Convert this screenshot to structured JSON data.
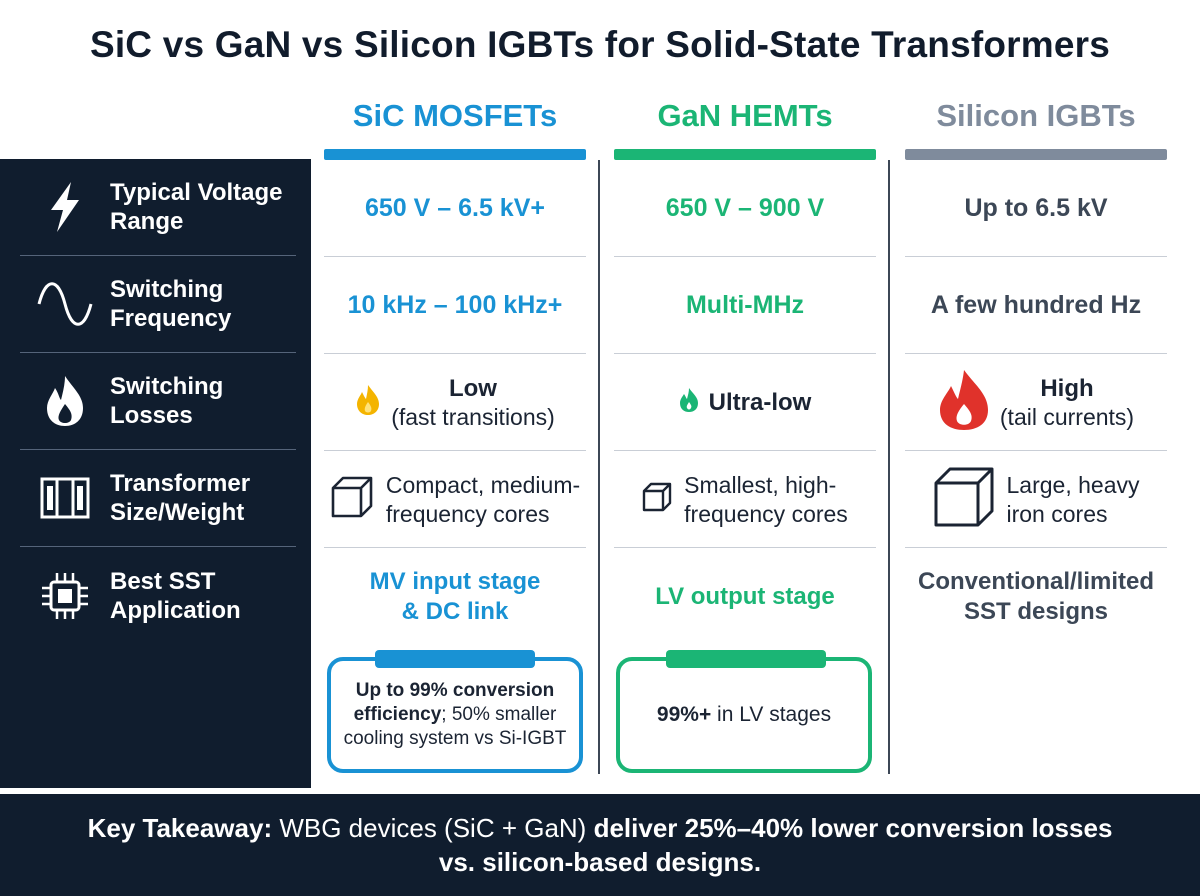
{
  "title": "SiC vs GaN vs Silicon IGBTs for Solid-State Transformers",
  "colors": {
    "sic": "#1992d4",
    "gan": "#1bb575",
    "si": "#7f8b9c",
    "dark": "#101d2e"
  },
  "columns": [
    {
      "name": "SiC MOSFETs"
    },
    {
      "name": "GaN HEMTs"
    },
    {
      "name": "Silicon IGBTs"
    }
  ],
  "rows": [
    {
      "label": "Typical Voltage\nRange",
      "icon": "lightning-icon"
    },
    {
      "label": "Switching\nFrequency",
      "icon": "sine-wave-icon"
    },
    {
      "label": "Switching\nLosses",
      "icon": "flame-icon"
    },
    {
      "label": "Transformer\nSize/Weight",
      "icon": "transformer-core-icon"
    },
    {
      "label": "Best SST\nApplication",
      "icon": "chip-icon"
    }
  ],
  "voltage": {
    "sic": "650 V – 6.5 kV+",
    "gan": "650 V – 900 V",
    "si": "Up to 6.5 kV"
  },
  "frequency": {
    "sic": "10 kHz – 100 kHz+",
    "gan": "Multi-MHz",
    "si": "A few hundred Hz"
  },
  "losses": {
    "sic": {
      "level": "Low",
      "note": "(fast transitions)",
      "icon": "small-flame-icon"
    },
    "gan": {
      "level": "Ultra-low",
      "icon": "tiny-flame-icon"
    },
    "si": {
      "level": "High",
      "note": "(tail currents)",
      "icon": "large-flame-icon"
    }
  },
  "size": {
    "sic": {
      "text": "Compact, medium-\nfrequency cores",
      "icon": "medium-cube-icon"
    },
    "gan": {
      "text": "Smallest, high-\nfrequency cores",
      "icon": "small-cube-icon"
    },
    "si": {
      "text": "Large, heavy\niron cores",
      "icon": "large-cube-icon"
    }
  },
  "application": {
    "sic": "MV input stage\n& DC link",
    "gan": "LV output stage",
    "si": "Conventional/limited\nSST designs"
  },
  "callouts": {
    "sic": {
      "bold": "Up to 99% conversion efficiency",
      "rest": "; 50% smaller cooling system vs Si-IGBT"
    },
    "gan": {
      "bold": "99%+",
      "rest": " in LV stages"
    }
  },
  "footer": {
    "lead": "Key Takeaway:",
    "part1": " WBG devices (SiC + GaN) ",
    "bold": "deliver 25%–40% lower conversion losses vs. silicon-based designs."
  }
}
